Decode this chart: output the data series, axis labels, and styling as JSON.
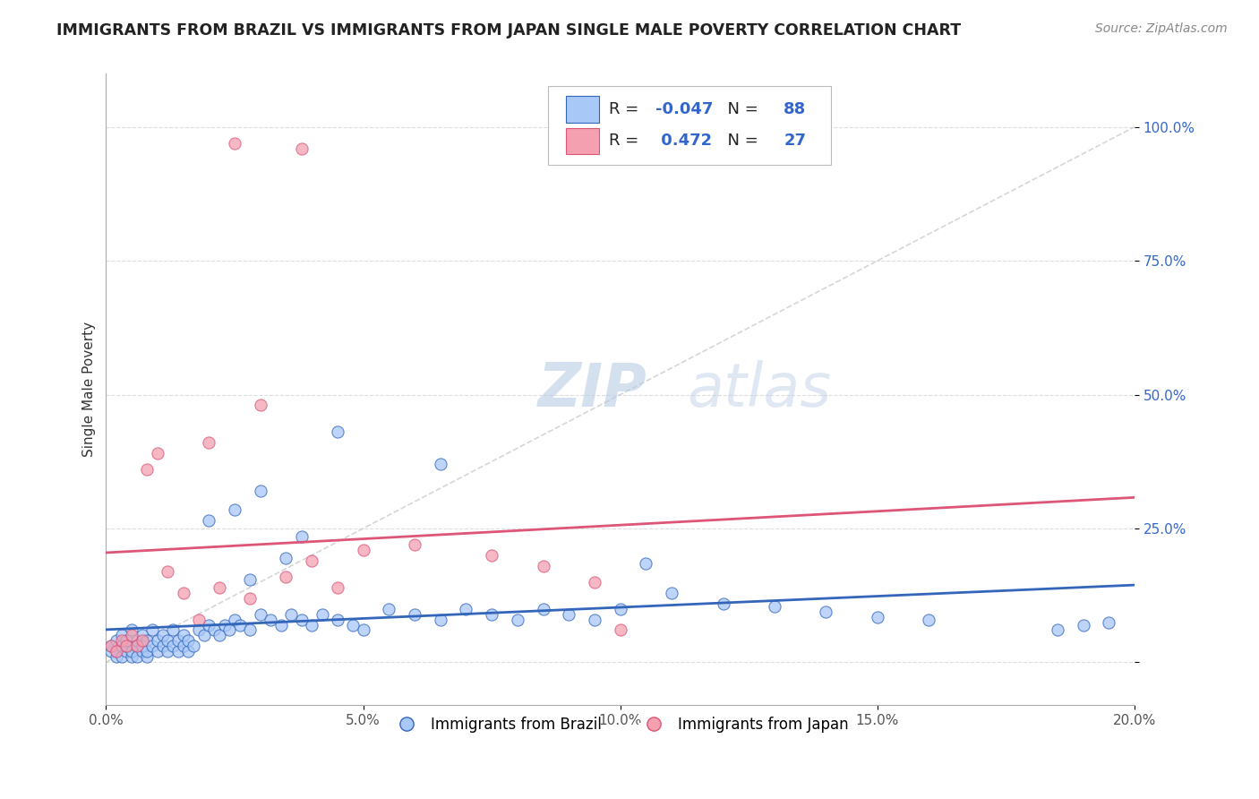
{
  "title": "IMMIGRANTS FROM BRAZIL VS IMMIGRANTS FROM JAPAN SINGLE MALE POVERTY CORRELATION CHART",
  "source": "Source: ZipAtlas.com",
  "ylabel": "Single Male Poverty",
  "xlim": [
    0.0,
    0.2
  ],
  "ylim": [
    -0.08,
    1.1
  ],
  "xtick_labels": [
    "0.0%",
    "5.0%",
    "10.0%",
    "15.0%",
    "20.0%"
  ],
  "xtick_vals": [
    0.0,
    0.05,
    0.1,
    0.15,
    0.2
  ],
  "ytick_labels": [
    "100.0%",
    "75.0%",
    "50.0%",
    "25.0%",
    ""
  ],
  "ytick_vals": [
    1.0,
    0.75,
    0.5,
    0.25,
    0.0
  ],
  "brazil_R": -0.047,
  "brazil_N": 88,
  "japan_R": 0.472,
  "japan_N": 27,
  "brazil_color": "#a8c8f8",
  "japan_color": "#f4a0b0",
  "brazil_line_color": "#3366bb",
  "japan_line_color": "#dd5577",
  "diagonal_color": "#cccccc",
  "watermark_text_color": "#ccddf5",
  "grid_color": "#dddddd",
  "legend_text_color": "#222222",
  "legend_num_color": "#3366cc"
}
